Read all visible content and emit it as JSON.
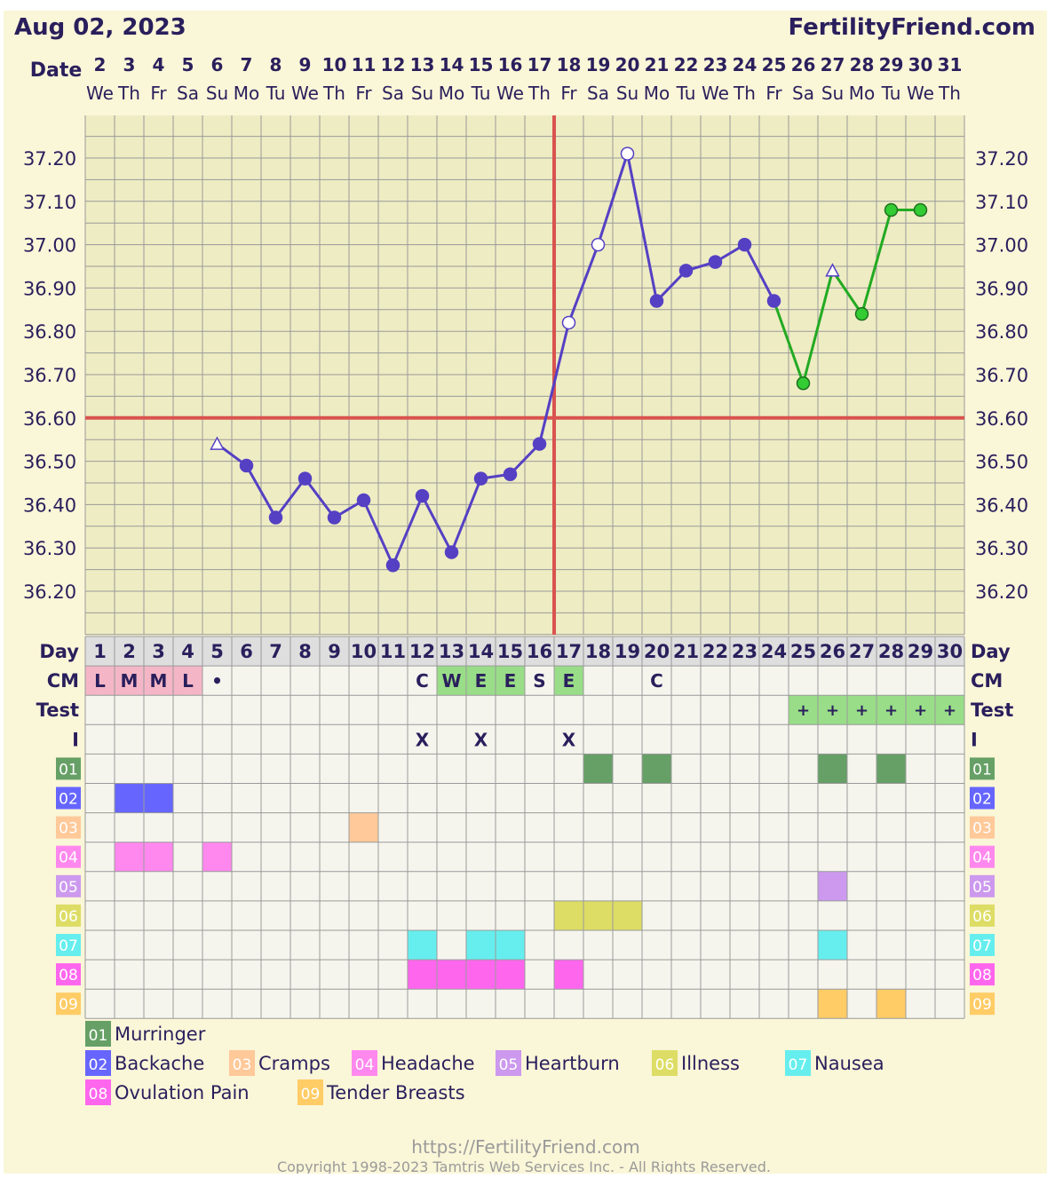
{
  "header": {
    "date": "Aug 02, 2023",
    "site": "FertilityFriend.com"
  },
  "labels": {
    "date": "Date",
    "day": "Day",
    "cm": "CM",
    "test": "Test",
    "intercourse": "I"
  },
  "footer": {
    "url": "https://FertilityFriend.com",
    "copyright": "Copyright 1998-2023 Tamtris Web Services Inc. - All Rights Reserved."
  },
  "colors": {
    "background": "#faf6d8",
    "plot_background": "#eeecc3",
    "grid": "#9a9a9a",
    "table_cell": "#f5f5ee",
    "day_header": "#dedede",
    "coverline": "#d9534f",
    "text": "#2a1f5c",
    "temp_line": "#5540c4",
    "next_cycle_line": "#22aa22",
    "next_cycle_point": "#33cc33",
    "cm_period": "#f4b6c6",
    "cm_fertile": "#99dd88",
    "test_positive": "#99dd88"
  },
  "chart_data": {
    "type": "line",
    "title": "",
    "xlabel": "Day",
    "ylabel": "",
    "ylim": [
      36.1,
      37.3
    ],
    "y_ticks": [
      "37.20",
      "37.10",
      "37.00",
      "36.90",
      "36.80",
      "36.70",
      "36.60",
      "36.50",
      "36.40",
      "36.30",
      "36.20"
    ],
    "dates": [
      "2",
      "3",
      "4",
      "5",
      "6",
      "7",
      "8",
      "9",
      "10",
      "11",
      "12",
      "13",
      "14",
      "15",
      "16",
      "17",
      "18",
      "19",
      "20",
      "21",
      "22",
      "23",
      "24",
      "25",
      "26",
      "27",
      "28",
      "29",
      "30",
      "31"
    ],
    "weekdays": [
      "We",
      "Th",
      "Fr",
      "Sa",
      "Su",
      "Mo",
      "Tu",
      "We",
      "Th",
      "Fr",
      "Sa",
      "Su",
      "Mo",
      "Tu",
      "We",
      "Th",
      "Fr",
      "Sa",
      "Su",
      "Mo",
      "Tu",
      "We",
      "Th",
      "Fr",
      "Sa",
      "Su",
      "Mo",
      "Tu",
      "We",
      "Th"
    ],
    "cycle_days": [
      "1",
      "2",
      "3",
      "4",
      "5",
      "6",
      "7",
      "8",
      "9",
      "10",
      "11",
      "12",
      "13",
      "14",
      "15",
      "16",
      "17",
      "18",
      "19",
      "20",
      "21",
      "22",
      "23",
      "24",
      "25",
      "26",
      "27",
      "28",
      "29",
      "30"
    ],
    "coverline": 36.6,
    "ovulation_day": 16,
    "grid": true,
    "series": [
      {
        "points": [
          {
            "day": 5,
            "value": 36.54,
            "marker": "triangle"
          },
          {
            "day": 6,
            "value": 36.49,
            "marker": "filled"
          },
          {
            "day": 7,
            "value": 36.37,
            "marker": "filled"
          },
          {
            "day": 8,
            "value": 36.46,
            "marker": "filled"
          },
          {
            "day": 9,
            "value": 36.37,
            "marker": "filled"
          },
          {
            "day": 10,
            "value": 36.41,
            "marker": "filled"
          },
          {
            "day": 11,
            "value": 36.26,
            "marker": "filled"
          },
          {
            "day": 12,
            "value": 36.42,
            "marker": "filled"
          },
          {
            "day": 13,
            "value": 36.29,
            "marker": "filled"
          },
          {
            "day": 14,
            "value": 36.46,
            "marker": "filled"
          },
          {
            "day": 15,
            "value": 36.47,
            "marker": "filled"
          },
          {
            "day": 16,
            "value": 36.54,
            "marker": "filled"
          },
          {
            "day": 17,
            "value": 36.82,
            "marker": "open"
          },
          {
            "day": 18,
            "value": 37.0,
            "marker": "open"
          },
          {
            "day": 19,
            "value": 37.21,
            "marker": "open"
          },
          {
            "day": 20,
            "value": 36.87,
            "marker": "filled"
          },
          {
            "day": 21,
            "value": 36.94,
            "marker": "filled"
          },
          {
            "day": 22,
            "value": 36.96,
            "marker": "filled"
          },
          {
            "day": 23,
            "value": 37.0,
            "marker": "filled"
          },
          {
            "day": 24,
            "value": 36.87,
            "marker": "filled"
          }
        ]
      },
      {
        "points": [
          {
            "day": 24,
            "value": 36.87,
            "marker": "none"
          },
          {
            "day": 25,
            "value": 36.68,
            "marker": "filled"
          },
          {
            "day": 26,
            "value": 36.94,
            "marker": "triangle"
          },
          {
            "day": 27,
            "value": 36.84,
            "marker": "filled"
          },
          {
            "day": 28,
            "value": 37.08,
            "marker": "filled"
          },
          {
            "day": 29,
            "value": 37.08,
            "marker": "filled"
          }
        ]
      }
    ],
    "cm": [
      {
        "day": 1,
        "code": "L",
        "kind": "period"
      },
      {
        "day": 2,
        "code": "M",
        "kind": "period"
      },
      {
        "day": 3,
        "code": "M",
        "kind": "period"
      },
      {
        "day": 4,
        "code": "L",
        "kind": "period"
      },
      {
        "day": 5,
        "code": "•",
        "kind": "plain"
      },
      {
        "day": 12,
        "code": "C",
        "kind": "plain"
      },
      {
        "day": 13,
        "code": "W",
        "kind": "fertile"
      },
      {
        "day": 14,
        "code": "E",
        "kind": "fertile"
      },
      {
        "day": 15,
        "code": "E",
        "kind": "fertile"
      },
      {
        "day": 16,
        "code": "S",
        "kind": "plain"
      },
      {
        "day": 17,
        "code": "E",
        "kind": "fertile"
      },
      {
        "day": 20,
        "code": "C",
        "kind": "plain"
      }
    ],
    "test": [
      {
        "day": 25,
        "code": "+"
      },
      {
        "day": 26,
        "code": "+"
      },
      {
        "day": 27,
        "code": "+"
      },
      {
        "day": 28,
        "code": "+"
      },
      {
        "day": 29,
        "code": "+"
      },
      {
        "day": 30,
        "code": "+"
      }
    ],
    "intercourse": [
      {
        "day": 12,
        "code": "X"
      },
      {
        "day": 14,
        "code": "X"
      },
      {
        "day": 17,
        "code": "X"
      }
    ],
    "symptoms": [
      {
        "code": "01",
        "name": "Murringer",
        "color": "#66a066",
        "days": [
          18,
          20,
          26,
          28
        ]
      },
      {
        "code": "02",
        "name": "Backache",
        "color": "#6666ff",
        "days": [
          2,
          3
        ]
      },
      {
        "code": "03",
        "name": "Cramps",
        "color": "#ffc999",
        "days": [
          10
        ]
      },
      {
        "code": "04",
        "name": "Headache",
        "color": "#ff88ee",
        "days": [
          2,
          3,
          5
        ]
      },
      {
        "code": "05",
        "name": "Heartburn",
        "color": "#cc99ee",
        "days": [
          26
        ]
      },
      {
        "code": "06",
        "name": "Illness",
        "color": "#dddd66",
        "days": [
          17,
          18,
          19
        ]
      },
      {
        "code": "07",
        "name": "Nausea",
        "color": "#66eeee",
        "days": [
          12,
          14,
          15,
          26
        ]
      },
      {
        "code": "08",
        "name": "Ovulation Pain",
        "color": "#ff66ee",
        "days": [
          12,
          13,
          14,
          15,
          17
        ]
      },
      {
        "code": "09",
        "name": "Tender Breasts",
        "color": "#ffcc66",
        "days": [
          26,
          28
        ]
      }
    ]
  }
}
